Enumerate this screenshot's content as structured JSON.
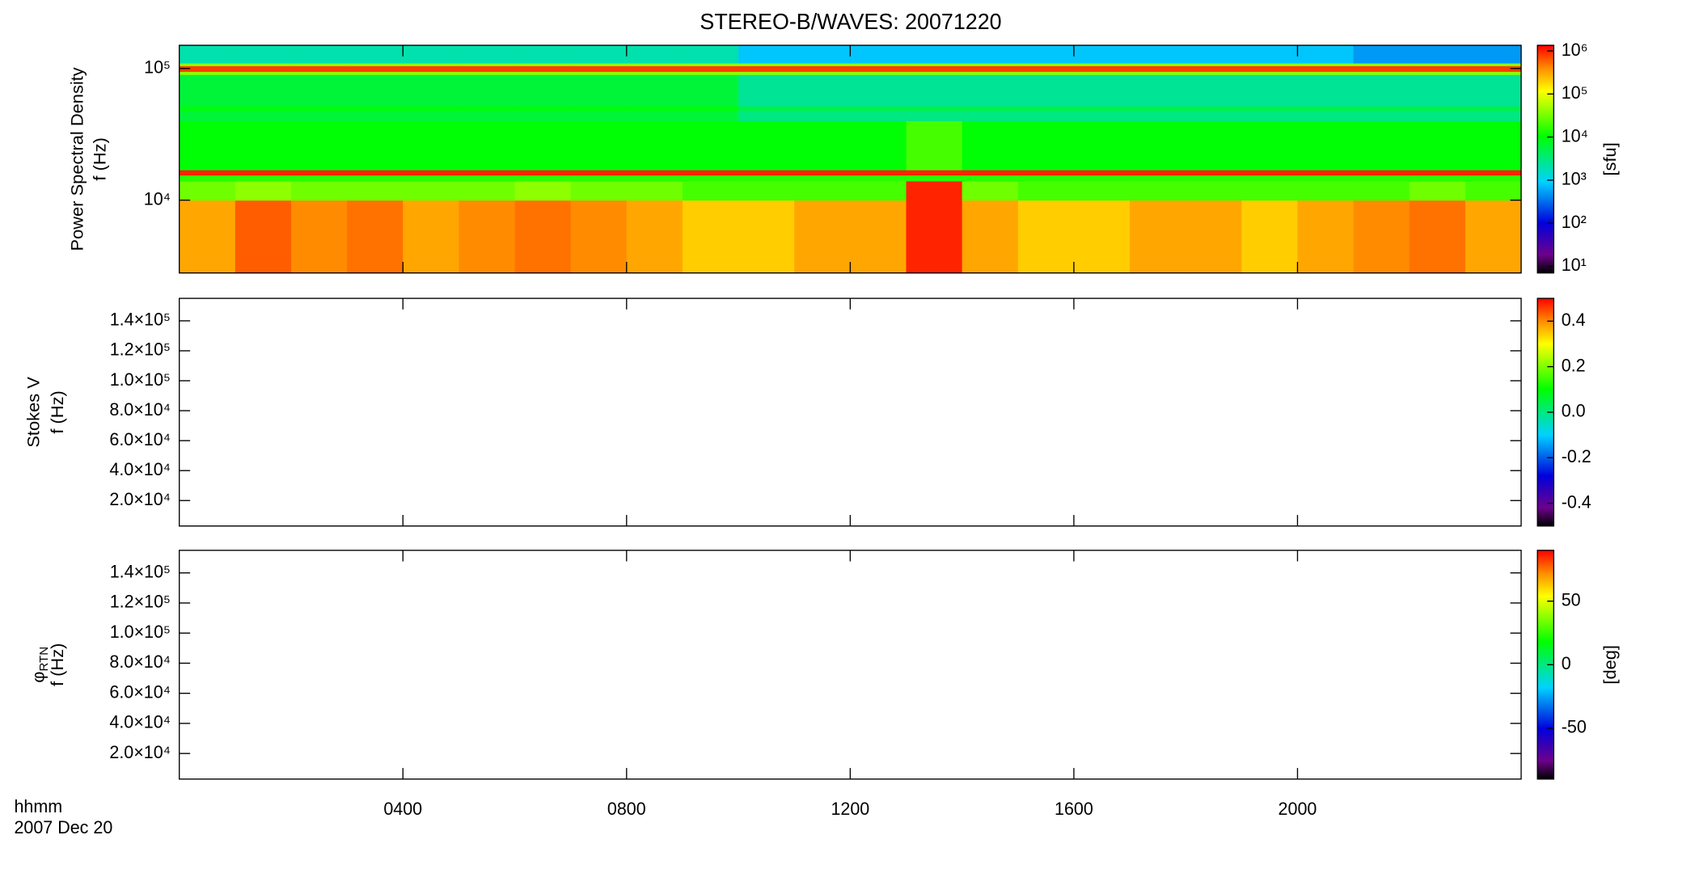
{
  "chart_data": [
    {
      "type": "spectrogram",
      "title": "STEREO-B/WAVES: 20071220",
      "ylabel": "Power Spectral Density",
      "ylabel2": "f (Hz)",
      "ylog": true,
      "ylim": [
        2800,
        150000
      ],
      "yticks": [
        {
          "value": 10000,
          "label": "10⁴"
        },
        {
          "value": 100000,
          "label": "10⁵"
        }
      ],
      "xbins": [
        0,
        1,
        2,
        3,
        4,
        5,
        6,
        7,
        8,
        9,
        10,
        11,
        12,
        13,
        14,
        15,
        16,
        17,
        18,
        19,
        20,
        21,
        22,
        23,
        24
      ],
      "ybins": [
        2800,
        10000,
        14000,
        15500,
        17000,
        40000,
        48000,
        52000,
        90000,
        95000,
        105000,
        110000,
        150000
      ],
      "z": [
        [
          300000,
          600000,
          400000,
          500000,
          300000,
          400000,
          500000,
          400000,
          300000,
          200000,
          200000,
          300000,
          300000,
          1000000,
          300000,
          200000,
          200000,
          300000,
          300000,
          200000,
          300000,
          400000,
          500000,
          300000
        ],
        [
          30000,
          40000,
          30000,
          30000,
          30000,
          30000,
          40000,
          30000,
          30000,
          20000,
          20000,
          20000,
          20000,
          1000000,
          30000,
          20000,
          20000,
          20000,
          20000,
          20000,
          20000,
          20000,
          30000,
          20000
        ],
        [
          15000,
          15000,
          15000,
          15000,
          15000,
          15000,
          15000,
          15000,
          15000,
          15000,
          15000,
          15000,
          15000,
          15000,
          15000,
          15000,
          15000,
          15000,
          15000,
          15000,
          15000,
          15000,
          15000,
          15000
        ],
        [
          1000000,
          1000000,
          1000000,
          1000000,
          1000000,
          1000000,
          1000000,
          1000000,
          1000000,
          1000000,
          1000000,
          1000000,
          1000000,
          1000000,
          1000000,
          1000000,
          1000000,
          1000000,
          1000000,
          1000000,
          1000000,
          1000000,
          1000000,
          1000000
        ],
        [
          10000,
          10000,
          10000,
          10000,
          10000,
          10000,
          10000,
          10000,
          10000,
          10000,
          10000,
          10000,
          10000,
          20000,
          10000,
          10000,
          10000,
          10000,
          10000,
          10000,
          10000,
          10000,
          10000,
          10000
        ],
        [
          6000,
          6000,
          6000,
          6000,
          6000,
          6000,
          6000,
          6000,
          6000,
          6000,
          3000,
          3000,
          3000,
          3000,
          3000,
          3000,
          3000,
          3000,
          3000,
          3000,
          3000,
          3000,
          3000,
          3000
        ],
        [
          9000,
          9000,
          9000,
          9000,
          9000,
          9000,
          9000,
          9000,
          9000,
          9000,
          5000,
          5000,
          5000,
          5000,
          5000,
          5000,
          5000,
          5000,
          5000,
          5000,
          5000,
          5000,
          5000,
          5000
        ],
        [
          6000,
          6000,
          6000,
          6000,
          6000,
          6000,
          6000,
          6000,
          6000,
          6000,
          2500,
          2500,
          2500,
          2500,
          2500,
          2500,
          2500,
          2500,
          2500,
          2500,
          2500,
          2500,
          2500,
          2500
        ],
        [
          40000,
          40000,
          40000,
          40000,
          40000,
          40000,
          40000,
          40000,
          40000,
          40000,
          40000,
          40000,
          40000,
          40000,
          40000,
          40000,
          40000,
          40000,
          40000,
          40000,
          40000,
          40000,
          40000,
          40000
        ],
        [
          800000,
          800000,
          800000,
          800000,
          800000,
          800000,
          800000,
          800000,
          800000,
          800000,
          800000,
          800000,
          800000,
          800000,
          800000,
          800000,
          800000,
          800000,
          800000,
          800000,
          800000,
          800000,
          800000,
          800000
        ],
        [
          40000,
          40000,
          40000,
          40000,
          40000,
          40000,
          40000,
          40000,
          40000,
          40000,
          40000,
          40000,
          40000,
          40000,
          40000,
          40000,
          40000,
          40000,
          40000,
          40000,
          40000,
          40000,
          40000,
          40000
        ],
        [
          2000,
          2000,
          2000,
          2000,
          2000,
          2000,
          2000,
          2000,
          2000,
          2000,
          800,
          800,
          800,
          800,
          800,
          800,
          800,
          800,
          800,
          800,
          800,
          500,
          500,
          500
        ]
      ],
      "colorbar": {
        "log": true,
        "lim": [
          7,
          1350000
        ],
        "colormap": "rainbow",
        "label": "[sfu]",
        "ticks": [
          {
            "value": 10,
            "label": "10¹"
          },
          {
            "value": 100,
            "label": "10²"
          },
          {
            "value": 1000,
            "label": "10³"
          },
          {
            "value": 10000,
            "label": "10⁴"
          },
          {
            "value": 100000,
            "label": "10⁵"
          },
          {
            "value": 1000000,
            "label": "10⁶"
          }
        ]
      }
    },
    {
      "type": "spectrogram",
      "ylabel": "Stokes V",
      "ylabel2": "f (Hz)",
      "ylog": false,
      "ylim": [
        3000,
        155000
      ],
      "yticks": [
        {
          "value": 20000,
          "label": "2.0×10⁴"
        },
        {
          "value": 40000,
          "label": "4.0×10⁴"
        },
        {
          "value": 60000,
          "label": "6.0×10⁴"
        },
        {
          "value": 80000,
          "label": "8.0×10⁴"
        },
        {
          "value": 100000,
          "label": "1.0×10⁵"
        },
        {
          "value": 120000,
          "label": "1.2×10⁵"
        },
        {
          "value": 140000,
          "label": "1.4×10⁵"
        }
      ],
      "colorbar": {
        "log": false,
        "lim": [
          -0.5,
          0.5
        ],
        "colormap": "rainbow",
        "ticks": [
          -0.4,
          -0.2,
          {
            "value": 0,
            "label": "0.0"
          },
          0.2,
          0.4
        ]
      }
    },
    {
      "type": "spectrogram",
      "ylabel_symbol": "φ",
      "ylabel_subscript": "RTN",
      "ylabel2": "f (Hz)",
      "ylog": false,
      "ylim": [
        3000,
        155000
      ],
      "yticks": [
        {
          "value": 20000,
          "label": "2.0×10⁴"
        },
        {
          "value": 40000,
          "label": "4.0×10⁴"
        },
        {
          "value": 60000,
          "label": "6.0×10⁴"
        },
        {
          "value": 80000,
          "label": "8.0×10⁴"
        },
        {
          "value": 100000,
          "label": "1.0×10⁵"
        },
        {
          "value": 120000,
          "label": "1.2×10⁵"
        },
        {
          "value": 140000,
          "label": "1.4×10⁵"
        }
      ],
      "colorbar": {
        "log": false,
        "lim": [
          -90,
          90
        ],
        "colormap": "rainbow",
        "label": "[deg]",
        "ticks": [
          -50,
          0,
          50
        ]
      },
      "xlabel": "hhmm",
      "xlabel2": "2007 Dec 20",
      "xlim": [
        0,
        24
      ],
      "xticks": [
        {
          "value": 4,
          "label": "0400"
        },
        {
          "value": 8,
          "label": "0800"
        },
        {
          "value": 12,
          "label": "1200"
        },
        {
          "value": 16,
          "label": "1600"
        },
        {
          "value": 20,
          "label": "2000"
        }
      ]
    }
  ]
}
